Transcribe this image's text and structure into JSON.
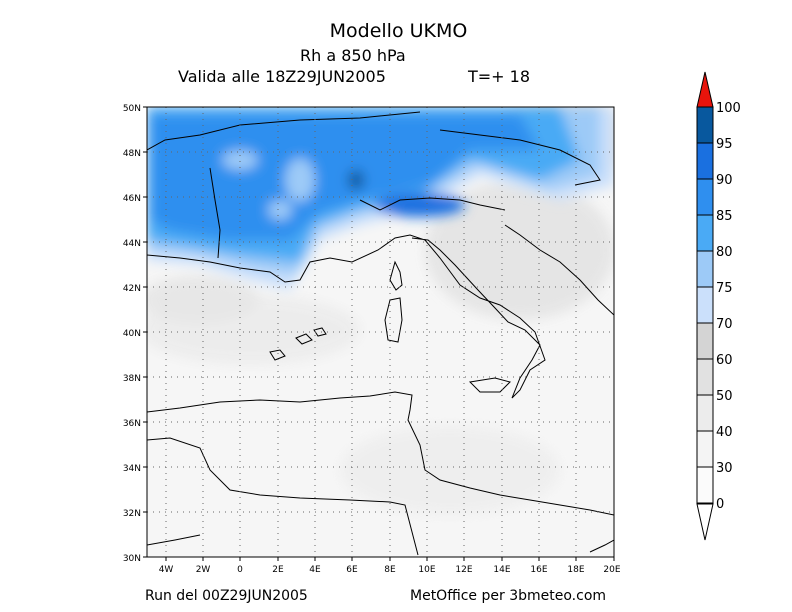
{
  "header": {
    "title": "Modello UKMO",
    "variable": "Rh a 850 hPa",
    "valid": "Valida alle 18Z29JUN2005",
    "lead": "T=+ 18"
  },
  "footer": {
    "run": "Run del 00Z29JUN2005",
    "credit": "MetOffice per 3bmeteo.com"
  },
  "map": {
    "lat_labels": [
      "50N",
      "48N",
      "46N",
      "44N",
      "42N",
      "40N",
      "38N",
      "36N",
      "34N",
      "32N",
      "30N"
    ],
    "lon_labels": [
      "4W",
      "2W",
      "0",
      "2E",
      "4E",
      "6E",
      "8E",
      "10E",
      "12E",
      "14E",
      "16E",
      "18E",
      "20E"
    ],
    "lat_range": [
      30,
      50
    ],
    "lon_range": [
      -5,
      20
    ],
    "grid": "dotted"
  },
  "colorbar": {
    "levels": [
      "100",
      "95",
      "90",
      "85",
      "80",
      "75",
      "70",
      "60",
      "50",
      "40",
      "30",
      "0"
    ],
    "colors": [
      "#08589e",
      "#1a70e0",
      "#2f8fef",
      "#4aaaf5",
      "#9dcaf7",
      "#cbe0fb",
      "#d4d4d4",
      "#e1e1e1",
      "#ececec",
      "#f4f4f4",
      "#fbfbfb",
      "#ffffff"
    ],
    "top_arrow_color": "#e8140c"
  }
}
